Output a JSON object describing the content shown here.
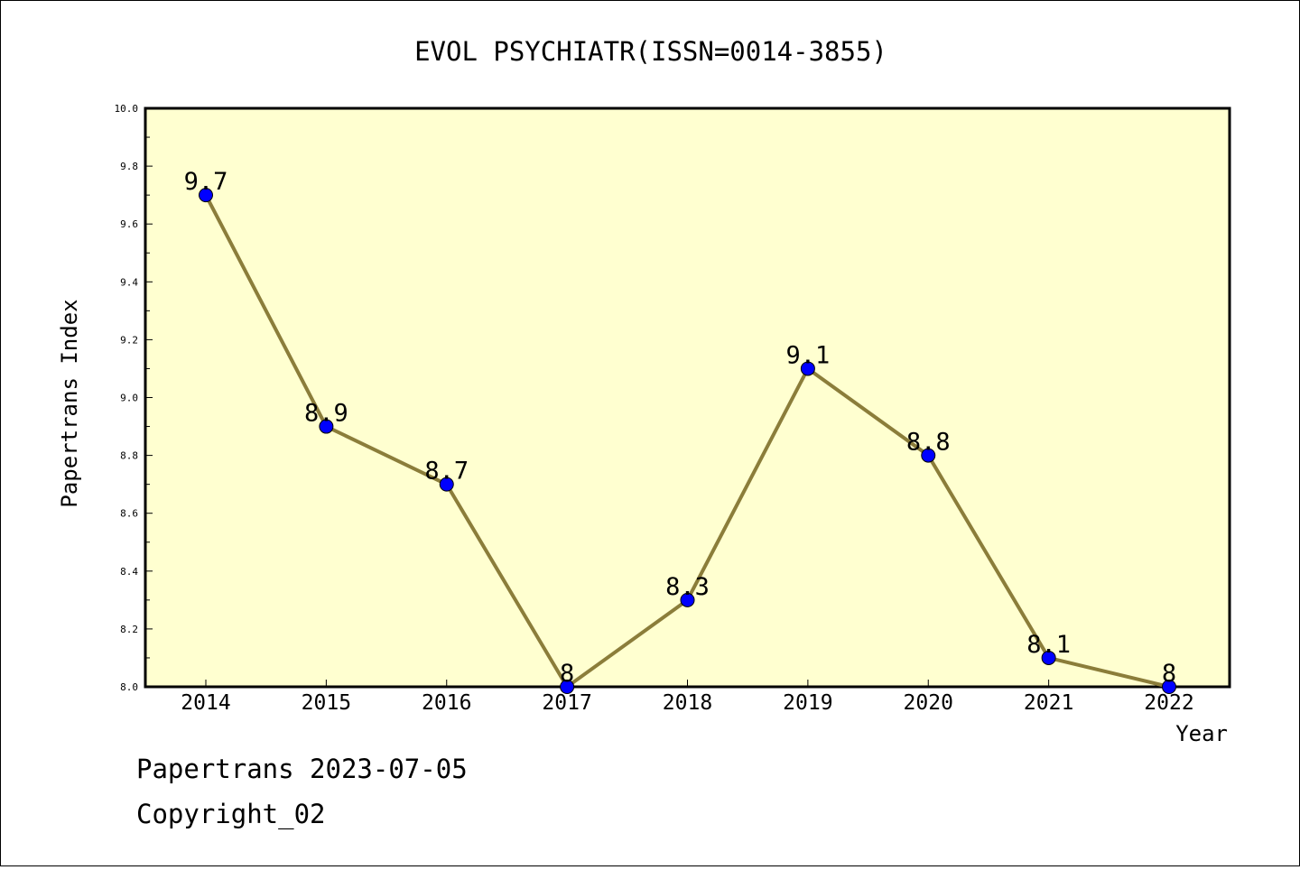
{
  "chart_data": {
    "type": "line",
    "title": "EVOL PSYCHIATR(ISSN=0014-3855)",
    "xlabel": "Year",
    "ylabel": "Papertrans Index",
    "categories": [
      "2014",
      "2015",
      "2016",
      "2017",
      "2018",
      "2019",
      "2020",
      "2021",
      "2022"
    ],
    "series": [
      {
        "values": [
          9.7,
          8.9,
          8.7,
          8.0,
          8.3,
          9.1,
          8.8,
          8.1,
          8.0
        ],
        "data_labels": [
          "9.7",
          "8.9",
          "8.7",
          "8",
          "8.3",
          "9.1",
          "8.8",
          "8.1",
          "8"
        ]
      }
    ],
    "ylim": [
      8.0,
      10.0
    ],
    "yticks": [
      "8.0",
      "8.2",
      "8.4",
      "8.6",
      "8.8",
      "9.0",
      "9.2",
      "9.4",
      "9.6",
      "9.8",
      "10.0"
    ],
    "grid": false,
    "legend": "none",
    "colors": {
      "plot_background": "#ffffd0",
      "line": "#8b7d3a",
      "marker": "#0000ff",
      "axis": "#000000"
    }
  },
  "footer": {
    "line1": "Papertrans 2023-07-05",
    "line2": "Copyright_02"
  }
}
